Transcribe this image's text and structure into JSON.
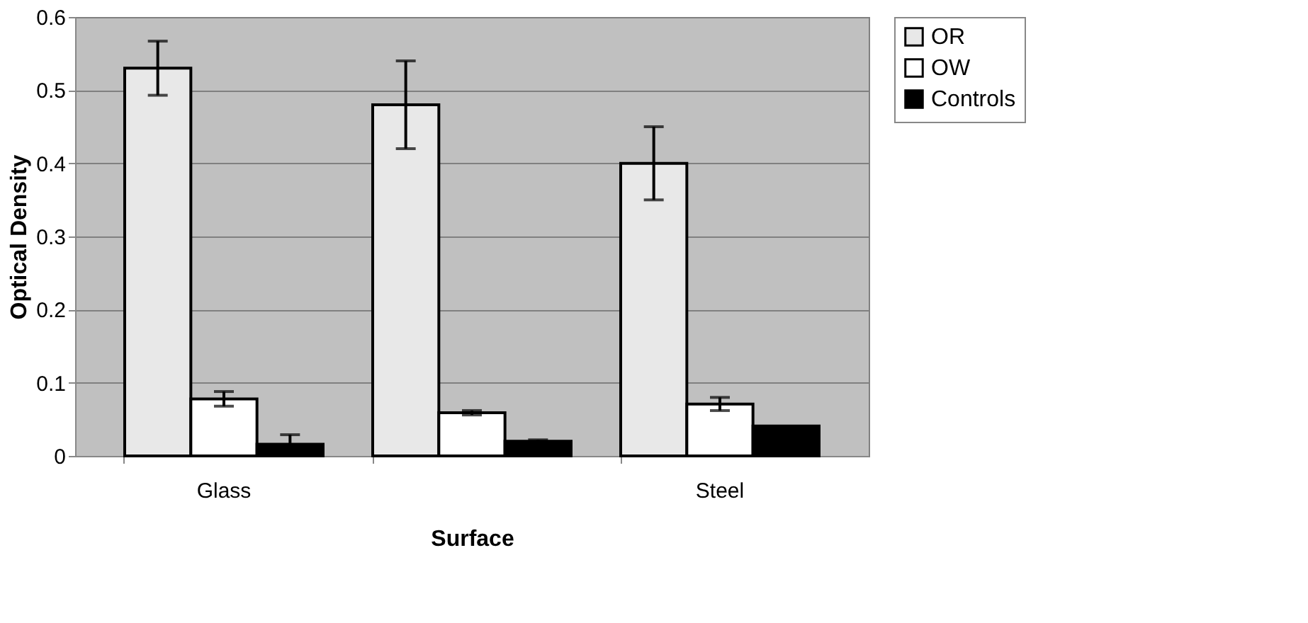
{
  "chart_data": {
    "type": "bar",
    "xlabel": "Surface",
    "ylabel": "Optical Density",
    "categories": [
      "Glass",
      null,
      "Steel"
    ],
    "series": [
      {
        "name": "OR",
        "color": "#e8e8e8",
        "values": [
          0.53,
          0.48,
          0.4
        ],
        "errors": [
          0.037,
          0.06,
          0.05
        ]
      },
      {
        "name": "OW",
        "color": "#ffffff",
        "values": [
          0.078,
          0.059,
          0.071
        ],
        "errors": [
          0.01,
          0.003,
          0.009
        ]
      },
      {
        "name": "Controls",
        "color": "#000000",
        "values": [
          0.016,
          0.02,
          0.041
        ],
        "errors": [
          0.013,
          0.002,
          null
        ]
      }
    ],
    "ylim": [
      0,
      0.6
    ],
    "yticks": [
      0,
      0.1,
      0.2,
      0.3,
      0.4,
      0.5,
      0.6
    ],
    "grid": "y",
    "legend": "right"
  }
}
